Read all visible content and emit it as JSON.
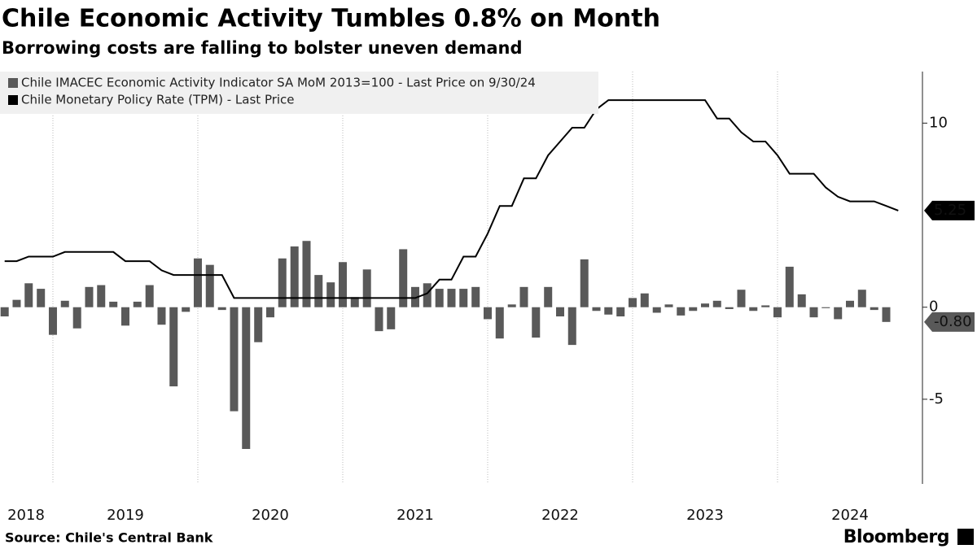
{
  "chart_data": {
    "type": "bar_line",
    "title": "Chile Economic Activity Tumbles 0.8% on Month",
    "subtitle": "Borrowing costs are falling to bolster uneven demand",
    "source": "Source: Chile's Central Bank",
    "brand": "Bloomberg",
    "xlim": [
      2018.635,
      2025
    ],
    "xticks": [
      2018,
      2019,
      2020,
      2021,
      2022,
      2023,
      2024
    ],
    "ylim": [
      -9.6,
      12.8
    ],
    "yticks": [
      -5,
      0,
      10
    ],
    "grid": "x",
    "legend": "top-left",
    "series": [
      {
        "name": "Chile IMACEC Economic Activity Indicator SA MoM 2013=100 - Last Price on 9/30/24",
        "type": "bar",
        "color": "#595959",
        "x": [
          2018.667,
          2018.75,
          2018.833,
          2018.917,
          2019.0,
          2019.083,
          2019.167,
          2019.25,
          2019.333,
          2019.417,
          2019.5,
          2019.583,
          2019.667,
          2019.75,
          2019.833,
          2019.917,
          2020.0,
          2020.083,
          2020.167,
          2020.25,
          2020.333,
          2020.417,
          2020.5,
          2020.583,
          2020.667,
          2020.75,
          2020.833,
          2020.917,
          2021.0,
          2021.083,
          2021.167,
          2021.25,
          2021.333,
          2021.417,
          2021.5,
          2021.583,
          2021.667,
          2021.75,
          2021.833,
          2021.917,
          2022.0,
          2022.083,
          2022.167,
          2022.25,
          2022.333,
          2022.417,
          2022.5,
          2022.583,
          2022.667,
          2022.75,
          2022.833,
          2022.917,
          2023.0,
          2023.083,
          2023.167,
          2023.25,
          2023.333,
          2023.417,
          2023.5,
          2023.583,
          2023.667,
          2023.75,
          2023.833,
          2023.917,
          2024.0,
          2024.083,
          2024.167,
          2024.25,
          2024.333,
          2024.417,
          2024.5,
          2024.583,
          2024.667,
          2024.75
        ],
        "values": [
          -0.5,
          0.4,
          1.3,
          1.0,
          -1.5,
          0.35,
          -1.15,
          1.1,
          1.2,
          0.3,
          -1.0,
          0.3,
          1.2,
          -0.95,
          -4.3,
          -0.25,
          2.65,
          2.3,
          -0.15,
          -5.65,
          -7.7,
          -1.9,
          -0.55,
          2.65,
          3.3,
          3.6,
          1.75,
          1.35,
          2.45,
          0.55,
          2.05,
          -1.3,
          -1.2,
          3.15,
          1.1,
          1.3,
          1.0,
          1.0,
          1.0,
          1.1,
          -0.65,
          -1.7,
          0.15,
          1.1,
          -1.65,
          1.1,
          -0.5,
          -2.05,
          2.6,
          -0.2,
          -0.4,
          -0.5,
          0.5,
          0.75,
          -0.3,
          0.15,
          -0.45,
          -0.2,
          0.2,
          0.35,
          -0.1,
          0.95,
          -0.2,
          0.1,
          -0.55,
          2.2,
          0.7,
          -0.55,
          -0.05,
          -0.65,
          0.35,
          0.95,
          -0.15,
          -0.8
        ],
        "last_label": "-0.80"
      },
      {
        "name": "Chile Monetary Policy Rate (TPM) - Last Price",
        "type": "line",
        "color": "#000000",
        "x": [
          2018.667,
          2018.75,
          2018.833,
          2018.917,
          2019.0,
          2019.083,
          2019.167,
          2019.25,
          2019.333,
          2019.417,
          2019.5,
          2019.583,
          2019.667,
          2019.75,
          2019.833,
          2019.917,
          2020.0,
          2020.083,
          2020.167,
          2020.25,
          2020.333,
          2020.417,
          2020.5,
          2020.583,
          2020.667,
          2020.75,
          2020.833,
          2020.917,
          2021.0,
          2021.083,
          2021.167,
          2021.25,
          2021.333,
          2021.417,
          2021.5,
          2021.583,
          2021.667,
          2021.75,
          2021.833,
          2021.917,
          2022.0,
          2022.083,
          2022.167,
          2022.25,
          2022.333,
          2022.417,
          2022.5,
          2022.583,
          2022.667,
          2022.75,
          2022.833,
          2022.917,
          2023.0,
          2023.083,
          2023.167,
          2023.25,
          2023.333,
          2023.417,
          2023.5,
          2023.583,
          2023.667,
          2023.75,
          2023.833,
          2023.917,
          2024.0,
          2024.083,
          2024.167,
          2024.25,
          2024.333,
          2024.417,
          2024.5,
          2024.583,
          2024.667,
          2024.75,
          2024.833
        ],
        "values": [
          2.5,
          2.5,
          2.75,
          2.75,
          2.75,
          3,
          3,
          3,
          3,
          3,
          2.5,
          2.5,
          2.5,
          2,
          1.75,
          1.75,
          1.75,
          1.75,
          1.75,
          0.5,
          0.5,
          0.5,
          0.5,
          0.5,
          0.5,
          0.5,
          0.5,
          0.5,
          0.5,
          0.5,
          0.5,
          0.5,
          0.5,
          0.5,
          0.5,
          0.75,
          1.5,
          1.5,
          2.75,
          2.75,
          4,
          5.5,
          5.5,
          7,
          7,
          8.25,
          9,
          9.75,
          9.75,
          10.75,
          11.25,
          11.25,
          11.25,
          11.25,
          11.25,
          11.25,
          11.25,
          11.25,
          11.25,
          10.25,
          10.25,
          9.5,
          9,
          9,
          8.25,
          7.25,
          7.25,
          7.25,
          6.5,
          6,
          5.75,
          5.75,
          5.75,
          5.5,
          5.25
        ]
      }
    ]
  }
}
